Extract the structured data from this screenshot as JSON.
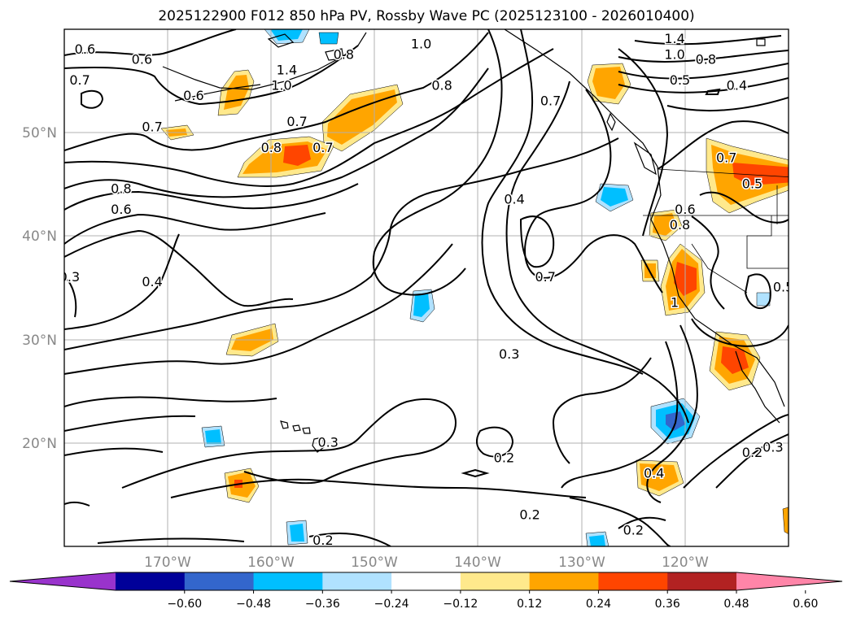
{
  "title": "2025122900 F012 850 hPa PV, Rossby Wave PC (2025123100 - 2026010400)",
  "lat_labels": [
    "50°N",
    "40°N",
    "30°N",
    "20°N"
  ],
  "lon_labels": [
    "170°W",
    "160°W",
    "150°W",
    "140°W",
    "130°W",
    "120°W"
  ],
  "map_extent": {
    "lon": [
      -180,
      -110
    ],
    "lat": [
      10,
      60
    ]
  },
  "gridlines": true,
  "colorbar": {
    "ticks": [
      "−0.60",
      "−0.48",
      "−0.36",
      "−0.24",
      "−0.12",
      "0.12",
      "0.24",
      "0.36",
      "0.48",
      "0.60"
    ],
    "bins": [
      {
        "from": null,
        "to": -0.6,
        "color": "#9933cc"
      },
      {
        "from": -0.6,
        "to": -0.48,
        "color": "#000099"
      },
      {
        "from": -0.48,
        "to": -0.36,
        "color": "#3366cc"
      },
      {
        "from": -0.36,
        "to": -0.24,
        "color": "#00bfff"
      },
      {
        "from": -0.24,
        "to": -0.12,
        "color": "#b0e2ff"
      },
      {
        "from": -0.12,
        "to": 0.12,
        "color": "#ffffff"
      },
      {
        "from": 0.12,
        "to": 0.24,
        "color": "#ffe98c"
      },
      {
        "from": 0.24,
        "to": 0.36,
        "color": "#ffa500"
      },
      {
        "from": 0.36,
        "to": 0.48,
        "color": "#ff4500"
      },
      {
        "from": 0.48,
        "to": 0.6,
        "color": "#b22222"
      },
      {
        "from": 0.6,
        "to": null,
        "color": "#ff85a8"
      }
    ]
  },
  "contour_labels": [
    {
      "text": "0.6",
      "lon": -178,
      "lat": 58
    },
    {
      "text": "0.7",
      "lon": -178.5,
      "lat": 55
    },
    {
      "text": "0.6",
      "lon": -172.5,
      "lat": 57
    },
    {
      "text": "0.6",
      "lon": -167.5,
      "lat": 53.5
    },
    {
      "text": "0.7",
      "lon": -157.5,
      "lat": 51
    },
    {
      "text": "0.8",
      "lon": -160,
      "lat": 48.5
    },
    {
      "text": "1.4",
      "lon": -158.5,
      "lat": 56
    },
    {
      "text": "1.0",
      "lon": -159,
      "lat": 54.5
    },
    {
      "text": "0.8",
      "lon": -153,
      "lat": 57.5
    },
    {
      "text": "0.7",
      "lon": -155,
      "lat": 48.5
    },
    {
      "text": "1.0",
      "lon": -145.5,
      "lat": 58.5
    },
    {
      "text": "0.8",
      "lon": -143.5,
      "lat": 54.5
    },
    {
      "text": "0.7",
      "lon": -171.5,
      "lat": 50.5
    },
    {
      "text": "0.8",
      "lon": -174.5,
      "lat": 44.5
    },
    {
      "text": "0.6",
      "lon": -174.5,
      "lat": 42.5
    },
    {
      "text": "0.3",
      "lon": -179.5,
      "lat": 36
    },
    {
      "text": "0.4",
      "lon": -171.5,
      "lat": 35.5
    },
    {
      "text": "1.4",
      "lon": -121,
      "lat": 59
    },
    {
      "text": "1.0",
      "lon": -121,
      "lat": 57.5
    },
    {
      "text": "0.8",
      "lon": -118,
      "lat": 57
    },
    {
      "text": "0.5",
      "lon": -120.5,
      "lat": 55
    },
    {
      "text": "0.4",
      "lon": -115,
      "lat": 54.5
    },
    {
      "text": "0.7",
      "lon": -133,
      "lat": 53
    },
    {
      "text": "0.4",
      "lon": -136.5,
      "lat": 43.5
    },
    {
      "text": "0.7",
      "lon": -133.5,
      "lat": 36
    },
    {
      "text": "0.8",
      "lon": -120.5,
      "lat": 41
    },
    {
      "text": "0.6",
      "lon": -120,
      "lat": 42.5
    },
    {
      "text": "0.7",
      "lon": -116,
      "lat": 47.5
    },
    {
      "text": "0.5",
      "lon": -113.5,
      "lat": 45
    },
    {
      "text": "0.5",
      "lon": -110.5,
      "lat": 35
    },
    {
      "text": "0.3",
      "lon": -137,
      "lat": 28.5
    },
    {
      "text": "0.3",
      "lon": -154.5,
      "lat": 20
    },
    {
      "text": "0.2",
      "lon": -137.5,
      "lat": 18.5
    },
    {
      "text": "0.2",
      "lon": -135,
      "lat": 13
    },
    {
      "text": "0.2",
      "lon": -155,
      "lat": 10.5
    },
    {
      "text": "0.4",
      "lon": -123,
      "lat": 17
    },
    {
      "text": "0.2",
      "lon": -125,
      "lat": 11.5
    },
    {
      "text": "0.2",
      "lon": -113.5,
      "lat": 19
    },
    {
      "text": "0.3",
      "lon": -111.5,
      "lat": 19.5
    },
    {
      "text": "1",
      "lon": -121,
      "lat": 33.5
    }
  ]
}
